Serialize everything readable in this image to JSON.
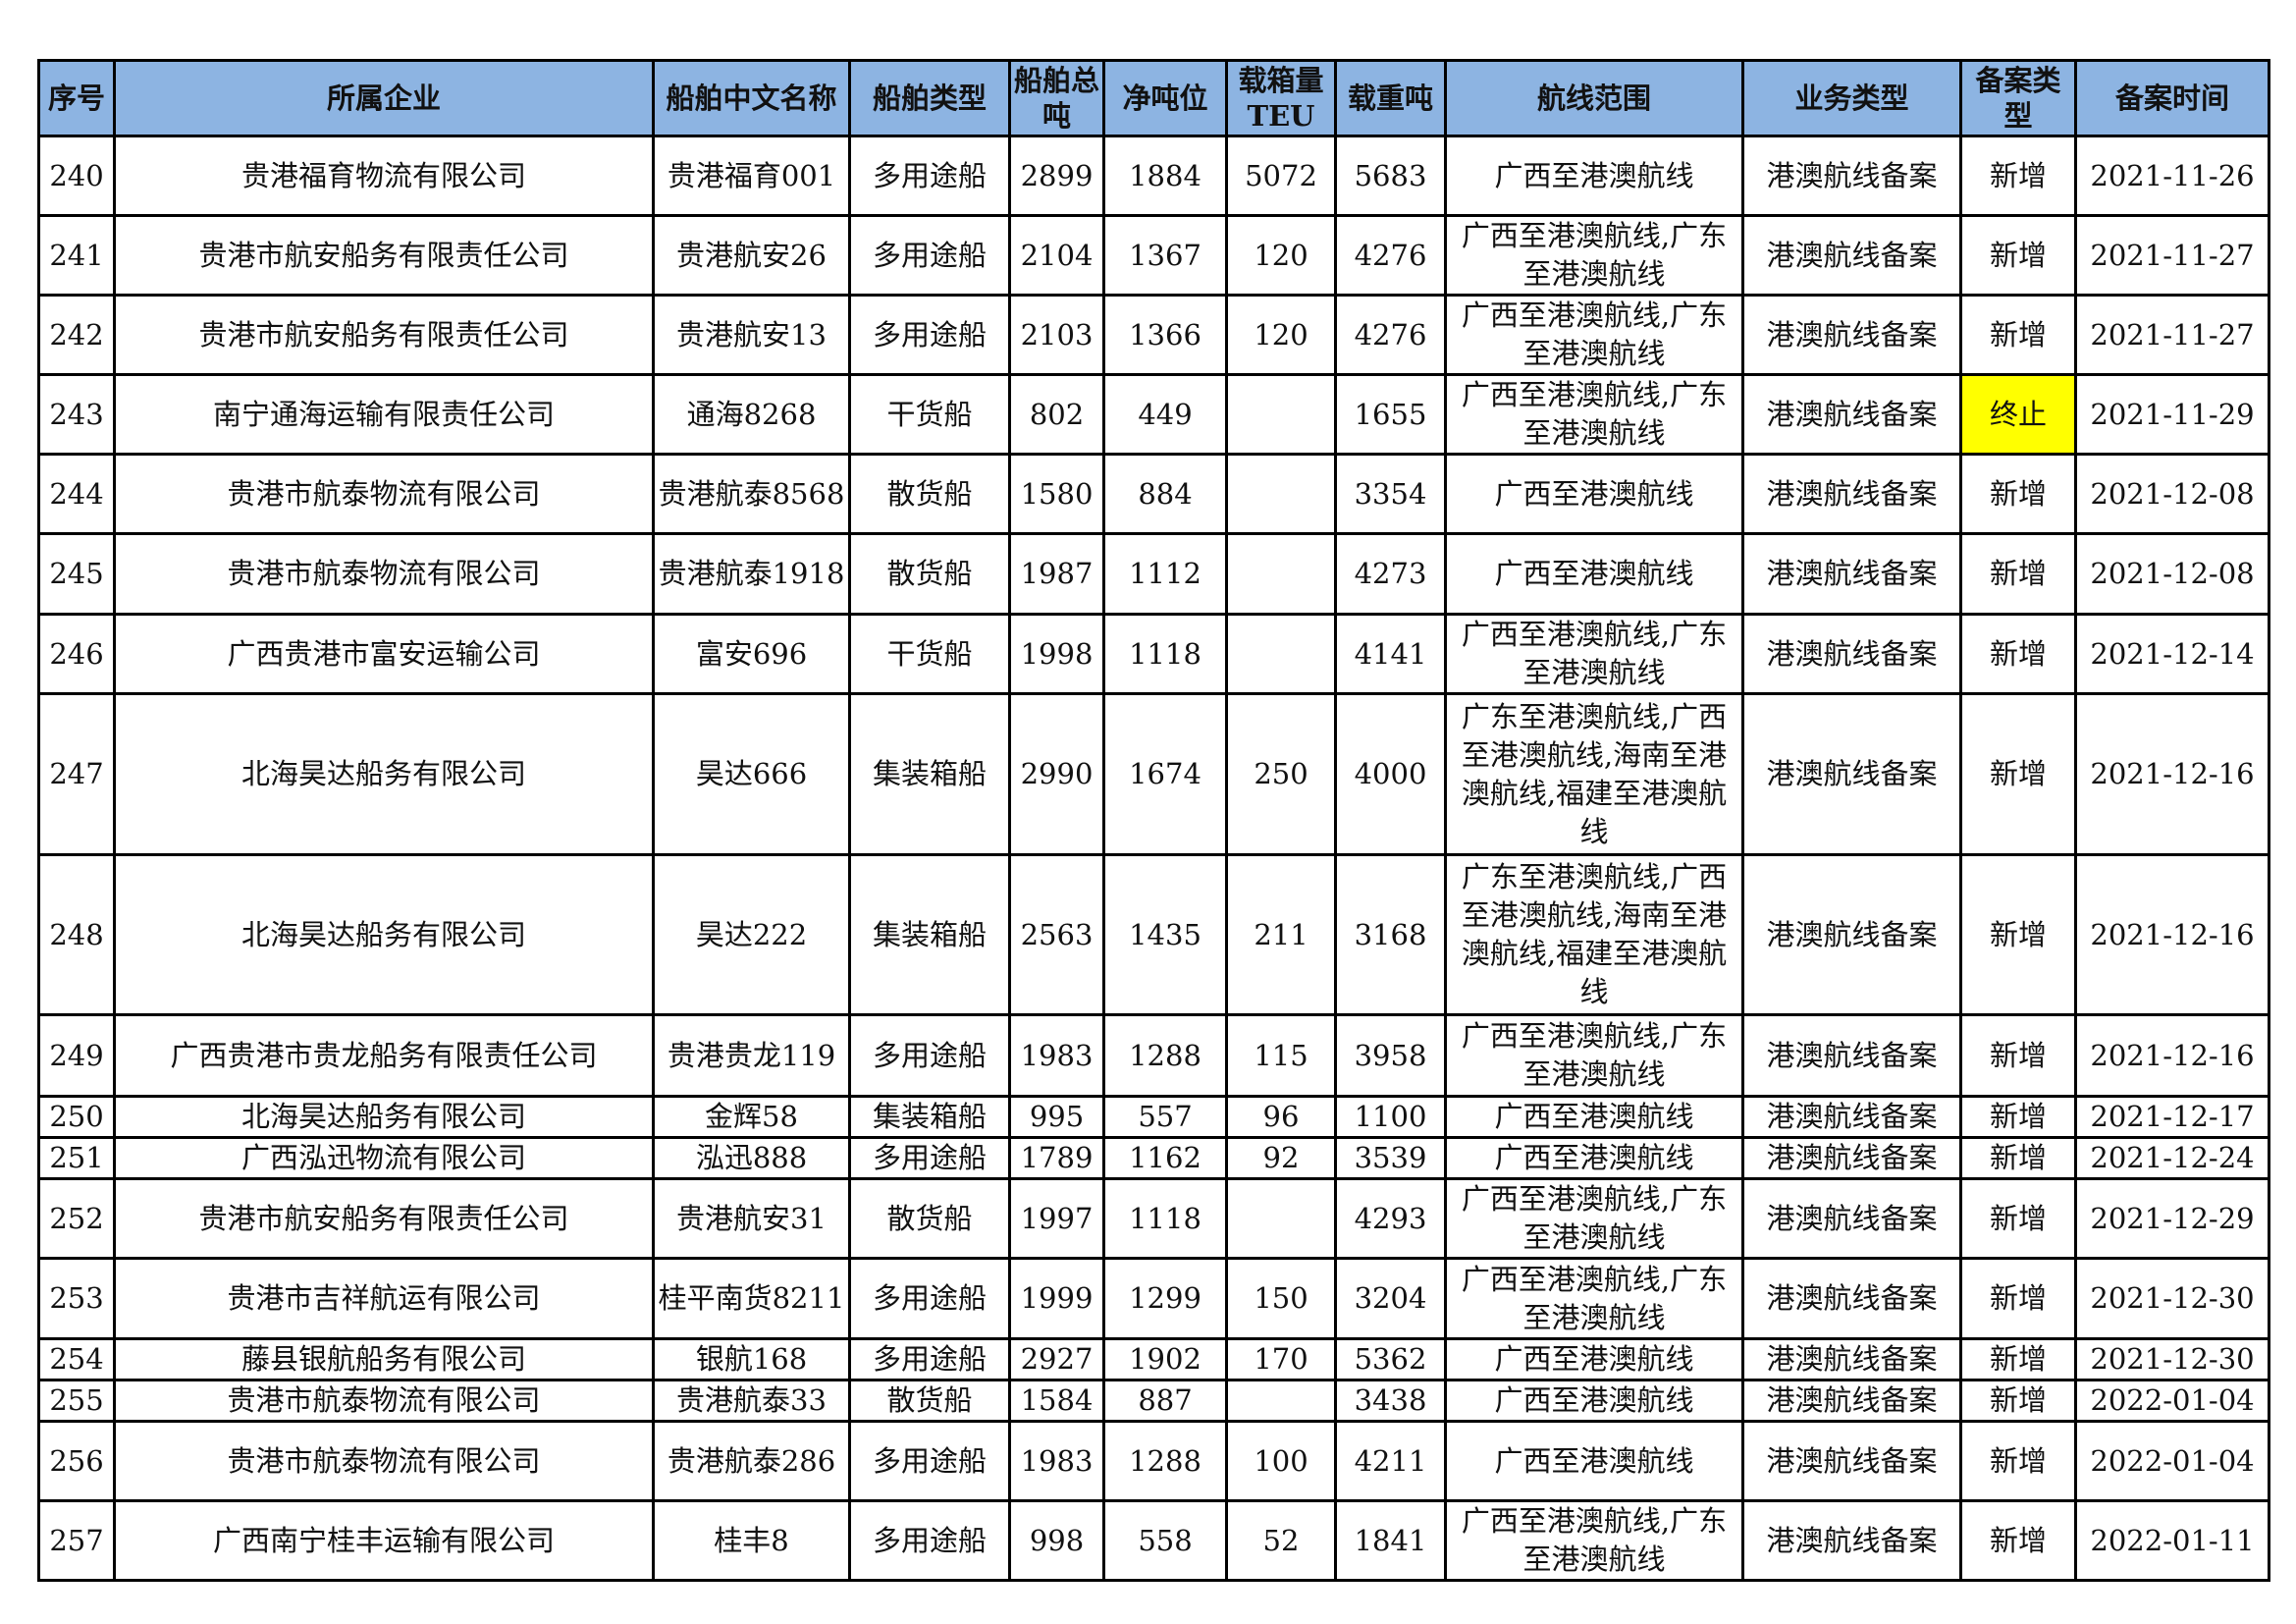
{
  "headers": [
    "序号",
    "所属企业",
    "船舶中文名称",
    "船舶类型",
    "船舶总吨",
    "净吨位",
    "载箱量TEU",
    "载重吨",
    "航线范围",
    "业务类型",
    "备案类型",
    "备案时间"
  ],
  "highlight_color": "#FFFF00",
  "header_color": "#8DB4E2",
  "rows": [
    [
      "240",
      "贵港福育物流有限公司",
      "贵港福育001",
      "多用途船",
      "2899",
      "1884",
      "5072",
      "5683",
      "广西至港澳航线",
      "港澳航线备案",
      "新增",
      "2021-11-26"
    ],
    [
      "241",
      "贵港市航安船务有限责任公司",
      "贵港航安26",
      "多用途船",
      "2104",
      "1367",
      "120",
      "4276",
      "广西至港澳航线,广东至港澳航线",
      "港澳航线备案",
      "新增",
      "2021-11-27"
    ],
    [
      "242",
      "贵港市航安船务有限责任公司",
      "贵港航安13",
      "多用途船",
      "2103",
      "1366",
      "120",
      "4276",
      "广西至港澳航线,广东至港澳航线",
      "港澳航线备案",
      "新增",
      "2021-11-27"
    ],
    [
      "243",
      "南宁通海运输有限责任公司",
      "通海8268",
      "干货船",
      "802",
      "449",
      "",
      "1655",
      "广西至港澳航线,广东至港澳航线",
      "港澳航线备案",
      "终止",
      "2021-11-29"
    ],
    [
      "244",
      "贵港市航泰物流有限公司",
      "贵港航泰8568",
      "散货船",
      "1580",
      "884",
      "",
      "3354",
      "广西至港澳航线",
      "港澳航线备案",
      "新增",
      "2021-12-08"
    ],
    [
      "245",
      "贵港市航泰物流有限公司",
      "贵港航泰1918",
      "散货船",
      "1987",
      "1112",
      "",
      "4273",
      "广西至港澳航线",
      "港澳航线备案",
      "新增",
      "2021-12-08"
    ],
    [
      "246",
      "广西贵港市富安运输公司",
      "富安696",
      "干货船",
      "1998",
      "1118",
      "",
      "4141",
      "广西至港澳航线,广东至港澳航线",
      "港澳航线备案",
      "新增",
      "2021-12-14"
    ],
    [
      "247",
      "北海昊达船务有限公司",
      "昊达666",
      "集装箱船",
      "2990",
      "1674",
      "250",
      "4000",
      "广东至港澳航线,广西至港澳航线,海南至港澳航线,福建至港澳航线",
      "港澳航线备案",
      "新增",
      "2021-12-16"
    ],
    [
      "248",
      "北海昊达船务有限公司",
      "昊达222",
      "集装箱船",
      "2563",
      "1435",
      "211",
      "3168",
      "广东至港澳航线,广西至港澳航线,海南至港澳航线,福建至港澳航线",
      "港澳航线备案",
      "新增",
      "2021-12-16"
    ],
    [
      "249",
      "广西贵港市贵龙船务有限责任公司",
      "贵港贵龙119",
      "多用途船",
      "1983",
      "1288",
      "115",
      "3958",
      "广西至港澳航线,广东至港澳航线",
      "港澳航线备案",
      "新增",
      "2021-12-16"
    ],
    [
      "250",
      "北海昊达船务有限公司",
      "金辉58",
      "集装箱船",
      "995",
      "557",
      "96",
      "1100",
      "广西至港澳航线",
      "港澳航线备案",
      "新增",
      "2021-12-17"
    ],
    [
      "251",
      "广西泓迅物流有限公司",
      "泓迅888",
      "多用途船",
      "1789",
      "1162",
      "92",
      "3539",
      "广西至港澳航线",
      "港澳航线备案",
      "新增",
      "2021-12-24"
    ],
    [
      "252",
      "贵港市航安船务有限责任公司",
      "贵港航安31",
      "散货船",
      "1997",
      "1118",
      "",
      "4293",
      "广西至港澳航线,广东至港澳航线",
      "港澳航线备案",
      "新增",
      "2021-12-29"
    ],
    [
      "253",
      "贵港市吉祥航运有限公司",
      "桂平南货8211",
      "多用途船",
      "1999",
      "1299",
      "150",
      "3204",
      "广西至港澳航线,广东至港澳航线",
      "港澳航线备案",
      "新增",
      "2021-12-30"
    ],
    [
      "254",
      "藤县银航船务有限公司",
      "银航168",
      "多用途船",
      "2927",
      "1902",
      "170",
      "5362",
      "广西至港澳航线",
      "港澳航线备案",
      "新增",
      "2021-12-30"
    ],
    [
      "255",
      "贵港市航泰物流有限公司",
      "贵港航泰33",
      "散货船",
      "1584",
      "887",
      "",
      "3438",
      "广西至港澳航线",
      "港澳航线备案",
      "新增",
      "2022-01-04"
    ],
    [
      "256",
      "贵港市航泰物流有限公司",
      "贵港航泰286",
      "多用途船",
      "1983",
      "1288",
      "100",
      "4211",
      "广西至港澳航线",
      "港澳航线备案",
      "新增",
      "2022-01-04"
    ],
    [
      "257",
      "广西南宁桂丰运输有限公司",
      "桂丰8",
      "多用途船",
      "998",
      "558",
      "52",
      "1841",
      "广西至港澳航线,广东至港澳航线",
      "港澳航线备案",
      "新增",
      "2022-01-11"
    ]
  ],
  "highlighted_cells": [
    {
      "row": 3,
      "col": 10
    }
  ]
}
